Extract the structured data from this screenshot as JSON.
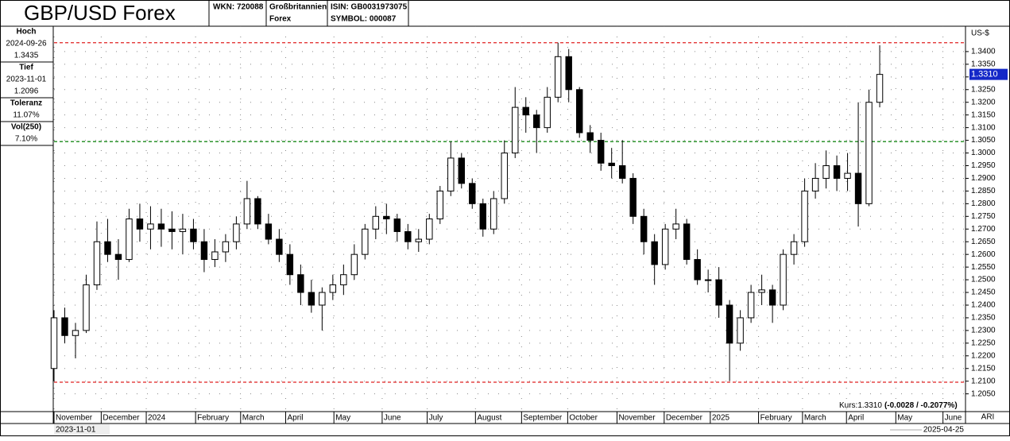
{
  "header": {
    "title": "GBP/USD Forex",
    "wkn": "WKN: 720088",
    "country": "Großbritannien",
    "market": "Forex",
    "isin": "ISIN: GB0031973075",
    "symbol": "SYMBOL: 000087"
  },
  "stats": [
    {
      "label": "Hoch",
      "date": "2024-09-26",
      "value": "1.3435"
    },
    {
      "label": "Tief",
      "date": "2023-11-01",
      "value": "1.2096"
    },
    {
      "label": "Toleranz",
      "value": "11.07%"
    },
    {
      "label": "Vol(250)",
      "value": "7.10%"
    }
  ],
  "chart_data": {
    "type": "candlestick",
    "currency": "US-$",
    "open": [
      1.215,
      1.235,
      1.228,
      1.23,
      1.248,
      1.265,
      1.26,
      1.258,
      1.274,
      1.27,
      1.272,
      1.27,
      1.269,
      1.27,
      1.265,
      1.258,
      1.261,
      1.265,
      1.272,
      1.282,
      1.272,
      1.266,
      1.26,
      1.252,
      1.245,
      1.24,
      1.245,
      1.248,
      1.252,
      1.26,
      1.27,
      1.275,
      1.274,
      1.269,
      1.265,
      1.266,
      1.274,
      1.285,
      1.298,
      1.288,
      1.28,
      1.27,
      1.282,
      1.3,
      1.318,
      1.315,
      1.31,
      1.322,
      1.338,
      1.325,
      1.308,
      1.305,
      1.296,
      1.295,
      1.29,
      1.275,
      1.265,
      1.256,
      1.27,
      1.272,
      1.258,
      1.25,
      1.25,
      1.24,
      1.225,
      1.235,
      1.245,
      1.246,
      1.24,
      1.26,
      1.265,
      1.285,
      1.29,
      1.295,
      1.29,
      1.292,
      1.28,
      1.32
    ],
    "high": [
      1.238,
      1.239,
      1.233,
      1.252,
      1.273,
      1.274,
      1.266,
      1.278,
      1.28,
      1.279,
      1.278,
      1.277,
      1.276,
      1.274,
      1.27,
      1.266,
      1.268,
      1.275,
      1.289,
      1.283,
      1.276,
      1.27,
      1.264,
      1.256,
      1.25,
      1.247,
      1.252,
      1.256,
      1.264,
      1.272,
      1.279,
      1.28,
      1.276,
      1.272,
      1.27,
      1.276,
      1.287,
      1.3045,
      1.3,
      1.29,
      1.282,
      1.285,
      1.305,
      1.326,
      1.322,
      1.317,
      1.326,
      1.3435,
      1.341,
      1.326,
      1.311,
      1.308,
      1.302,
      1.305,
      1.292,
      1.278,
      1.268,
      1.272,
      1.278,
      1.274,
      1.262,
      1.254,
      1.255,
      1.242,
      1.238,
      1.248,
      1.252,
      1.248,
      1.262,
      1.268,
      1.29,
      1.296,
      1.301,
      1.299,
      1.3,
      1.32,
      1.325,
      1.3425
    ],
    "low": [
      1.21,
      1.225,
      1.219,
      1.229,
      1.246,
      1.257,
      1.25,
      1.257,
      1.265,
      1.262,
      1.263,
      1.262,
      1.26,
      1.262,
      1.253,
      1.255,
      1.257,
      1.262,
      1.27,
      1.27,
      1.264,
      1.257,
      1.248,
      1.24,
      1.237,
      1.23,
      1.242,
      1.244,
      1.25,
      1.258,
      1.266,
      1.268,
      1.265,
      1.262,
      1.261,
      1.264,
      1.272,
      1.283,
      1.286,
      1.278,
      1.267,
      1.268,
      1.28,
      1.298,
      1.308,
      1.3,
      1.308,
      1.32,
      1.32,
      1.306,
      1.3,
      1.293,
      1.29,
      1.288,
      1.272,
      1.26,
      1.248,
      1.254,
      1.266,
      1.256,
      1.248,
      1.245,
      1.235,
      1.21,
      1.222,
      1.233,
      1.24,
      1.233,
      1.238,
      1.256,
      1.263,
      1.282,
      1.286,
      1.285,
      1.285,
      1.271,
      1.279,
      1.318
    ],
    "close": [
      1.235,
      1.228,
      1.23,
      1.248,
      1.265,
      1.26,
      1.258,
      1.274,
      1.27,
      1.272,
      1.27,
      1.269,
      1.27,
      1.265,
      1.258,
      1.261,
      1.265,
      1.272,
      1.282,
      1.272,
      1.266,
      1.26,
      1.252,
      1.245,
      1.24,
      1.245,
      1.248,
      1.252,
      1.26,
      1.27,
      1.275,
      1.274,
      1.269,
      1.265,
      1.266,
      1.274,
      1.285,
      1.298,
      1.288,
      1.28,
      1.27,
      1.282,
      1.3,
      1.318,
      1.315,
      1.31,
      1.322,
      1.338,
      1.325,
      1.308,
      1.305,
      1.296,
      1.295,
      1.29,
      1.275,
      1.265,
      1.256,
      1.27,
      1.272,
      1.258,
      1.25,
      1.25,
      1.24,
      1.225,
      1.235,
      1.245,
      1.246,
      1.24,
      1.26,
      1.265,
      1.285,
      1.29,
      1.295,
      1.29,
      1.292,
      1.28,
      1.32,
      1.331
    ],
    "color": "#000000",
    "xlim": [
      0,
      85
    ],
    "xticks": [
      {
        "value": 0,
        "label": "November"
      },
      {
        "value": 4.4,
        "label": "December"
      },
      {
        "value": 8.6,
        "label": "2024"
      },
      {
        "value": 13.2,
        "label": "February"
      },
      {
        "value": 17.4,
        "label": "March"
      },
      {
        "value": 21.6,
        "label": "April"
      },
      {
        "value": 26.1,
        "label": "May"
      },
      {
        "value": 30.6,
        "label": "June"
      },
      {
        "value": 34.8,
        "label": "July"
      },
      {
        "value": 39.3,
        "label": "August"
      },
      {
        "value": 43.6,
        "label": "September"
      },
      {
        "value": 47.9,
        "label": "October"
      },
      {
        "value": 52.5,
        "label": "November"
      },
      {
        "value": 56.9,
        "label": "December"
      },
      {
        "value": 61.2,
        "label": "2025"
      },
      {
        "value": 65.7,
        "label": "February"
      },
      {
        "value": 69.8,
        "label": "March"
      },
      {
        "value": 73.9,
        "label": "April"
      },
      {
        "value": 78.5,
        "label": "May"
      },
      {
        "value": 82.9,
        "label": "June"
      }
    ],
    "ylim": [
      1.198,
      1.35
    ],
    "yticks": [
      {
        "value": 1.205,
        "label": "1.2050"
      },
      {
        "value": 1.21,
        "label": "1.2100"
      },
      {
        "value": 1.215,
        "label": "1.2150"
      },
      {
        "value": 1.22,
        "label": "1.2200"
      },
      {
        "value": 1.225,
        "label": "1.2250"
      },
      {
        "value": 1.23,
        "label": "1.2300"
      },
      {
        "value": 1.235,
        "label": "1.2350"
      },
      {
        "value": 1.24,
        "label": "1.2400"
      },
      {
        "value": 1.245,
        "label": "1.2450"
      },
      {
        "value": 1.25,
        "label": "1.2500"
      },
      {
        "value": 1.255,
        "label": "1.2550"
      },
      {
        "value": 1.26,
        "label": "1.2600"
      },
      {
        "value": 1.265,
        "label": "1.2650"
      },
      {
        "value": 1.27,
        "label": "1.2700"
      },
      {
        "value": 1.275,
        "label": "1.2750"
      },
      {
        "value": 1.28,
        "label": "1.2800"
      },
      {
        "value": 1.285,
        "label": "1.2850"
      },
      {
        "value": 1.29,
        "label": "1.2900"
      },
      {
        "value": 1.295,
        "label": "1.2950"
      },
      {
        "value": 1.3,
        "label": "1.3000"
      },
      {
        "value": 1.305,
        "label": "1.3050"
      },
      {
        "value": 1.31,
        "label": "1.3100"
      },
      {
        "value": 1.315,
        "label": "1.3150"
      },
      {
        "value": 1.32,
        "label": "1.3200"
      },
      {
        "value": 1.325,
        "label": "1.3250"
      },
      {
        "value": 1.33,
        "label": "1.3300"
      },
      {
        "value": 1.335,
        "label": "1.3350"
      },
      {
        "value": 1.34,
        "label": "1.3400"
      }
    ],
    "grid": true,
    "reference_lines": [
      {
        "value": 1.3435,
        "color": "#e02020"
      },
      {
        "value": 1.2096,
        "color": "#e02020"
      },
      {
        "value": 1.3045,
        "color": "#1a8a1a"
      }
    ],
    "last_price": {
      "value": 1.331,
      "label": "1.3310"
    },
    "kurs_label": "Kurs:1.3310",
    "kurs_change": "(-0.0028 / -0.2077%)"
  },
  "footer": {
    "start": "2023-11-01",
    "end": "2025-04-25",
    "code": "ARI"
  }
}
